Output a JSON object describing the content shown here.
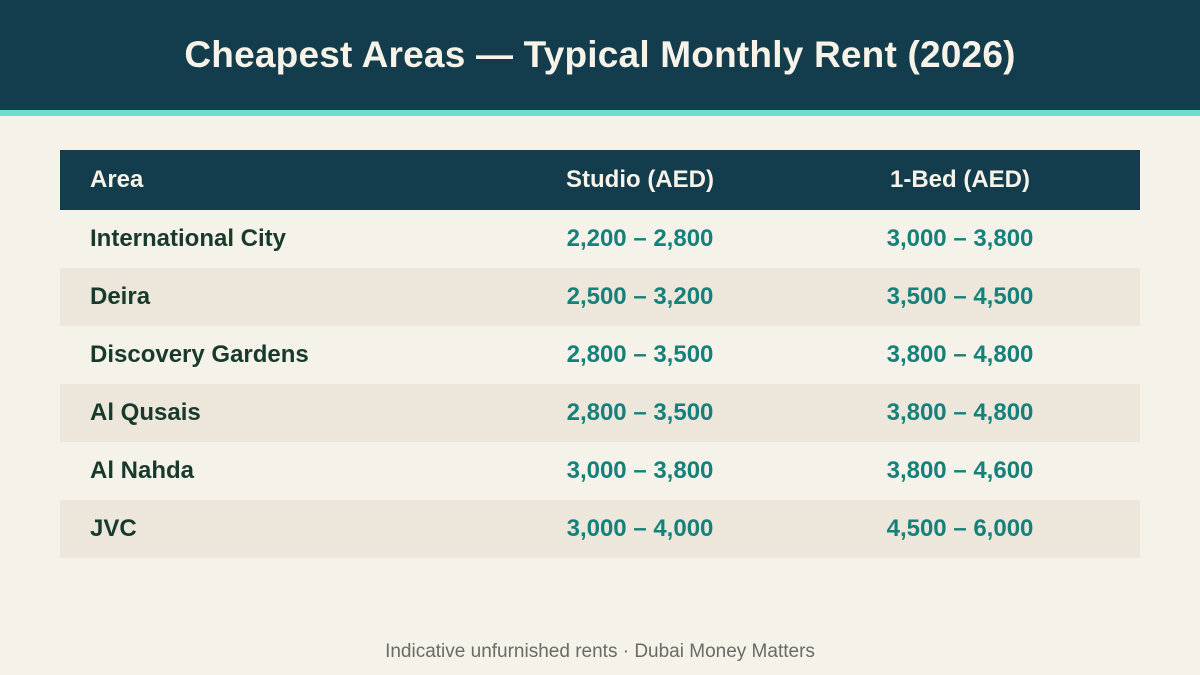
{
  "title": "Cheapest Areas — Typical Monthly Rent (2026)",
  "colors": {
    "header_bg": "#133d4d",
    "accent": "#6fdccc",
    "page_bg": "#f5f2ea",
    "alt_row_bg": "#ece6db",
    "area_text": "#173a2d",
    "value_text": "#16807a"
  },
  "table": {
    "headers": {
      "area": "Area",
      "studio": "Studio (AED)",
      "one_bed": "1-Bed (AED)"
    },
    "rows": [
      {
        "area": "International City",
        "studio": "2,200 – 2,800",
        "one_bed": "3,000 – 3,800"
      },
      {
        "area": "Deira",
        "studio": "2,500 – 3,200",
        "one_bed": "3,500 – 4,500"
      },
      {
        "area": "Discovery Gardens",
        "studio": "2,800 – 3,500",
        "one_bed": "3,800 – 4,800"
      },
      {
        "area": "Al Qusais",
        "studio": "2,800 – 3,500",
        "one_bed": "3,800 – 4,800"
      },
      {
        "area": "Al Nahda",
        "studio": "3,000 – 3,800",
        "one_bed": "3,800 – 4,600"
      },
      {
        "area": "JVC",
        "studio": "3,000 – 4,000",
        "one_bed": "4,500 – 6,000"
      }
    ]
  },
  "footer": "Indicative unfurnished rents · Dubai Money Matters"
}
